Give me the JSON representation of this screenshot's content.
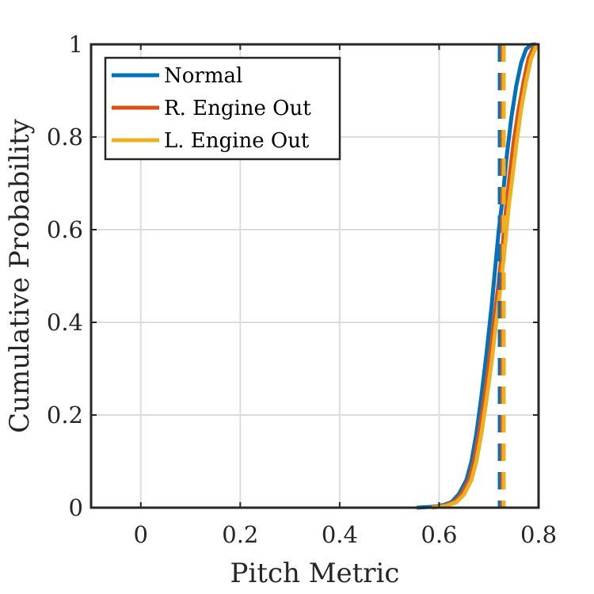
{
  "chart_data": {
    "type": "line",
    "title": "",
    "xlabel": "Pitch Metric",
    "ylabel": "Cumulative Probability",
    "xlim": [
      -0.1,
      0.8
    ],
    "ylim": [
      0,
      1
    ],
    "xticks": [
      0,
      0.2,
      0.4,
      0.6,
      0.8
    ],
    "xtick_labels": [
      "0",
      "0.2",
      "0.4",
      "0.6",
      "0.8"
    ],
    "yticks": [
      0,
      0.2,
      0.4,
      0.6,
      0.8,
      1
    ],
    "ytick_labels": [
      "0",
      "0.2",
      "0.4",
      "0.6",
      "0.8",
      "1"
    ],
    "grid": true,
    "legend_position": "top-left",
    "series": [
      {
        "name": "Normal",
        "color": "#0072BD",
        "x": [
          0.555,
          0.59,
          0.61,
          0.625,
          0.64,
          0.655,
          0.665,
          0.675,
          0.685,
          0.695,
          0.705,
          0.713,
          0.72,
          0.728,
          0.735,
          0.745,
          0.755,
          0.765,
          0.775,
          0.785,
          0.795
        ],
        "y": [
          0.0,
          0.002,
          0.006,
          0.012,
          0.03,
          0.06,
          0.1,
          0.16,
          0.24,
          0.33,
          0.43,
          0.52,
          0.6,
          0.67,
          0.75,
          0.84,
          0.91,
          0.96,
          0.99,
          0.999,
          1.0
        ],
        "median_line_x": 0.722
      },
      {
        "name": "R. Engine Out",
        "color": "#D95319",
        "x": [
          0.585,
          0.61,
          0.63,
          0.645,
          0.66,
          0.67,
          0.68,
          0.69,
          0.7,
          0.71,
          0.72,
          0.728,
          0.735,
          0.742,
          0.75,
          0.76,
          0.77,
          0.78,
          0.79,
          0.8
        ],
        "y": [
          0.0,
          0.004,
          0.012,
          0.03,
          0.06,
          0.1,
          0.16,
          0.23,
          0.31,
          0.4,
          0.49,
          0.57,
          0.65,
          0.72,
          0.79,
          0.86,
          0.92,
          0.97,
          0.995,
          1.0
        ],
        "median_line_x": 0.727
      },
      {
        "name": "L. Engine Out",
        "color": "#EDB120",
        "x": [
          0.585,
          0.615,
          0.635,
          0.65,
          0.665,
          0.675,
          0.685,
          0.695,
          0.705,
          0.715,
          0.725,
          0.733,
          0.74,
          0.748,
          0.756,
          0.765,
          0.775,
          0.785,
          0.795,
          0.8
        ],
        "y": [
          0.0,
          0.004,
          0.012,
          0.028,
          0.06,
          0.1,
          0.16,
          0.23,
          0.31,
          0.4,
          0.49,
          0.57,
          0.65,
          0.72,
          0.79,
          0.86,
          0.92,
          0.97,
          0.995,
          1.0
        ],
        "median_line_x": 0.73
      }
    ]
  }
}
